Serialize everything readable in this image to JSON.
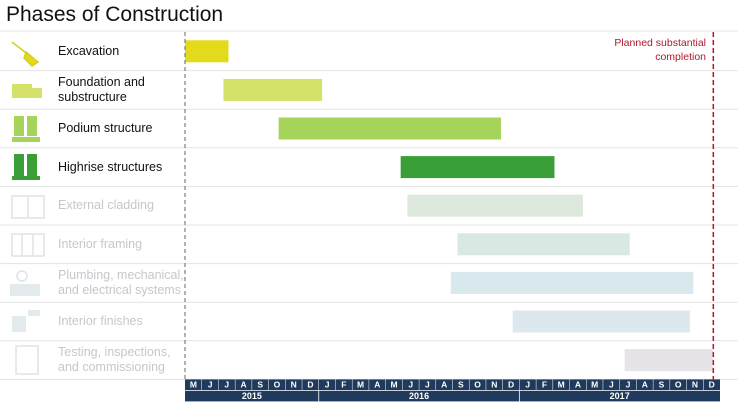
{
  "chart_data": {
    "type": "gantt",
    "title": "Phases of Construction",
    "xlim": [
      0,
      32
    ],
    "months": [
      "M",
      "J",
      "J",
      "A",
      "S",
      "O",
      "N",
      "D",
      "J",
      "F",
      "M",
      "A",
      "M",
      "J",
      "J",
      "A",
      "S",
      "O",
      "N",
      "D",
      "J",
      "F",
      "M",
      "A",
      "M",
      "J",
      "J",
      "A",
      "S",
      "O",
      "N",
      "D"
    ],
    "years": [
      "2015",
      "2016",
      "2017"
    ],
    "tasks": [
      {
        "name": "Excavation",
        "start": 0,
        "end": 2.6,
        "color": "#e4da1c"
      },
      {
        "name": "Foundation and substructure",
        "start": 2.3,
        "end": 8.2,
        "color": "#d5e26a"
      },
      {
        "name": "Podium structure",
        "start": 5.6,
        "end": 18.9,
        "color": "#a7d45b"
      },
      {
        "name": "Highrise structures",
        "start": 12.9,
        "end": 22.1,
        "color": "#3a9f36"
      },
      {
        "name": "External cladding",
        "start": 13.3,
        "end": 23.8,
        "color": "#dde9dc"
      },
      {
        "name": "Interior framing",
        "start": 16.3,
        "end": 26.6,
        "color": "#d9e8e2"
      },
      {
        "name": "Plumbing, mechanical, and electrical systems",
        "start": 15.9,
        "end": 30.4,
        "color": "#d9e8ec"
      },
      {
        "name": "Interior finishes",
        "start": 19.6,
        "end": 30.2,
        "color": "#dde8ee"
      },
      {
        "name": "Testing, inspections, and commissioning",
        "start": 26.3,
        "end": 31.6,
        "color": "#e6e4e9"
      }
    ],
    "milestone": {
      "label": "Planned substantial completion",
      "value": 31.6,
      "color": "#b0182a"
    }
  }
}
